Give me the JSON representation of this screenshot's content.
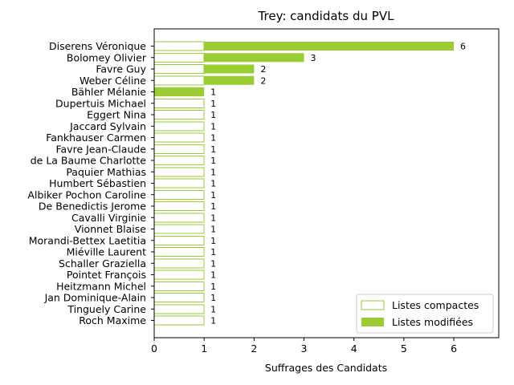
{
  "chart_data": {
    "type": "bar",
    "orientation": "horizontal",
    "stacked": true,
    "title": "Trey: candidats du PVL",
    "xlabel": "Suffrages des Candidats",
    "ylabel": "",
    "xlim": [
      0,
      6.9
    ],
    "xticks": [
      0,
      1,
      2,
      3,
      4,
      5,
      6
    ],
    "grid": false,
    "legend_position": "bottom-right",
    "colors": {
      "accent": "#9acd32",
      "background": "#ffffff",
      "axis": "#000000"
    },
    "categories": [
      "Diserens Véronique",
      "Bolomey Olivier",
      "Favre Guy",
      "Weber Céline",
      "Bähler Mélanie",
      "Dupertuis Michael",
      "Eggert Nina",
      "Jaccard Sylvain",
      "Fankhauser Carmen",
      "Favre Jean-Claude",
      "de La Baume Charlotte",
      "Paquier Mathias",
      "Humbert Sébastien",
      "Albiker Pochon Caroline",
      "De Benedictis Jerome",
      "Cavalli Virginie",
      "Vionnet Blaise",
      "Morandi-Bettex Laetitia",
      "Miéville Laurent",
      "Schaller Graziella",
      "Pointet François",
      "Heitzmann Michel",
      "Jan Dominique-Alain",
      "Tinguely Carine",
      "Roch Maxime"
    ],
    "series": [
      {
        "name": "Listes compactes",
        "style": "outline",
        "values": [
          1,
          1,
          1,
          1,
          0,
          1,
          1,
          1,
          1,
          1,
          1,
          1,
          1,
          1,
          1,
          1,
          1,
          1,
          1,
          1,
          1,
          1,
          1,
          1,
          1
        ]
      },
      {
        "name": "Listes modifiées",
        "style": "filled",
        "values": [
          5,
          2,
          1,
          1,
          1,
          0,
          0,
          0,
          0,
          0,
          0,
          0,
          0,
          0,
          0,
          0,
          0,
          0,
          0,
          0,
          0,
          0,
          0,
          0,
          0
        ]
      }
    ],
    "totals": [
      6,
      3,
      2,
      2,
      1,
      1,
      1,
      1,
      1,
      1,
      1,
      1,
      1,
      1,
      1,
      1,
      1,
      1,
      1,
      1,
      1,
      1,
      1,
      1,
      1
    ]
  }
}
